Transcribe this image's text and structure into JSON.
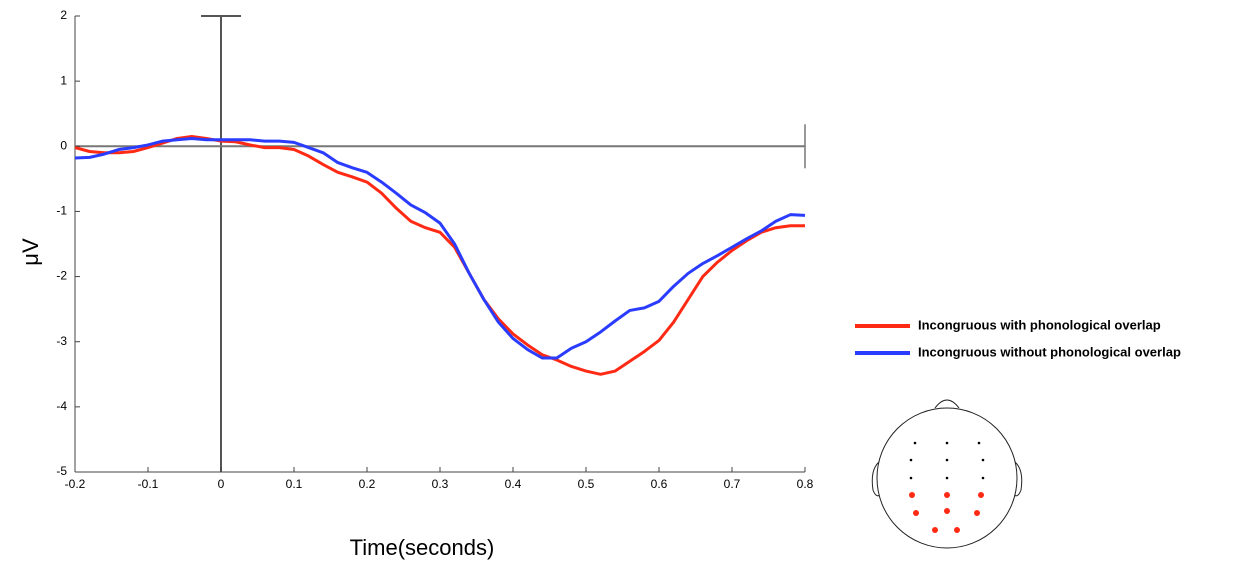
{
  "chart_data": {
    "type": "line",
    "xlabel": "Time(seconds)",
    "ylabel": "μV",
    "x": [
      -0.2,
      -0.18,
      -0.16,
      -0.14,
      -0.12,
      -0.1,
      -0.08,
      -0.06,
      -0.04,
      -0.02,
      0,
      0.02,
      0.04,
      0.06,
      0.08,
      0.1,
      0.12,
      0.14,
      0.16,
      0.18,
      0.2,
      0.22,
      0.24,
      0.26,
      0.28,
      0.3,
      0.32,
      0.34,
      0.36,
      0.38,
      0.4,
      0.42,
      0.44,
      0.46,
      0.48,
      0.5,
      0.52,
      0.54,
      0.56,
      0.58,
      0.6,
      0.62,
      0.64,
      0.66,
      0.68,
      0.7,
      0.72,
      0.74,
      0.76,
      0.78,
      0.8
    ],
    "series": [
      {
        "name": "Incongruous with phonological overlap",
        "color": "#ff2a14",
        "values": [
          -0.02,
          -0.08,
          -0.1,
          -0.1,
          -0.08,
          -0.02,
          0.05,
          0.12,
          0.15,
          0.12,
          0.08,
          0.07,
          0.02,
          -0.02,
          -0.02,
          -0.05,
          -0.15,
          -0.28,
          -0.4,
          -0.47,
          -0.55,
          -0.72,
          -0.95,
          -1.15,
          -1.25,
          -1.32,
          -1.55,
          -1.95,
          -2.35,
          -2.65,
          -2.88,
          -3.05,
          -3.2,
          -3.28,
          -3.38,
          -3.45,
          -3.5,
          -3.45,
          -3.3,
          -3.15,
          -2.98,
          -2.7,
          -2.35,
          -2.0,
          -1.78,
          -1.6,
          -1.45,
          -1.32,
          -1.25,
          -1.22,
          -1.22
        ]
      },
      {
        "name": "Incongruous without phonological overlap",
        "color": "#2a3cff",
        "values": [
          -0.18,
          -0.17,
          -0.12,
          -0.05,
          -0.02,
          0.02,
          0.08,
          0.1,
          0.12,
          0.1,
          0.1,
          0.1,
          0.1,
          0.08,
          0.08,
          0.06,
          -0.02,
          -0.1,
          -0.25,
          -0.33,
          -0.4,
          -0.55,
          -0.72,
          -0.9,
          -1.02,
          -1.18,
          -1.5,
          -1.95,
          -2.35,
          -2.7,
          -2.95,
          -3.12,
          -3.25,
          -3.25,
          -3.1,
          -3.0,
          -2.85,
          -2.68,
          -2.52,
          -2.48,
          -2.38,
          -2.15,
          -1.95,
          -1.8,
          -1.68,
          -1.55,
          -1.42,
          -1.3,
          -1.15,
          -1.05,
          -1.06
        ]
      }
    ],
    "xlim": [
      -0.2,
      0.8
    ],
    "xticks": [
      -0.2,
      -0.1,
      0,
      0.1,
      0.2,
      0.3,
      0.4,
      0.5,
      0.6,
      0.7,
      0.8
    ],
    "ylim": [
      -5,
      2
    ],
    "yticks": [
      2,
      1,
      0,
      -1,
      -2,
      -3,
      -4,
      -5
    ],
    "legend": "right"
  }
}
